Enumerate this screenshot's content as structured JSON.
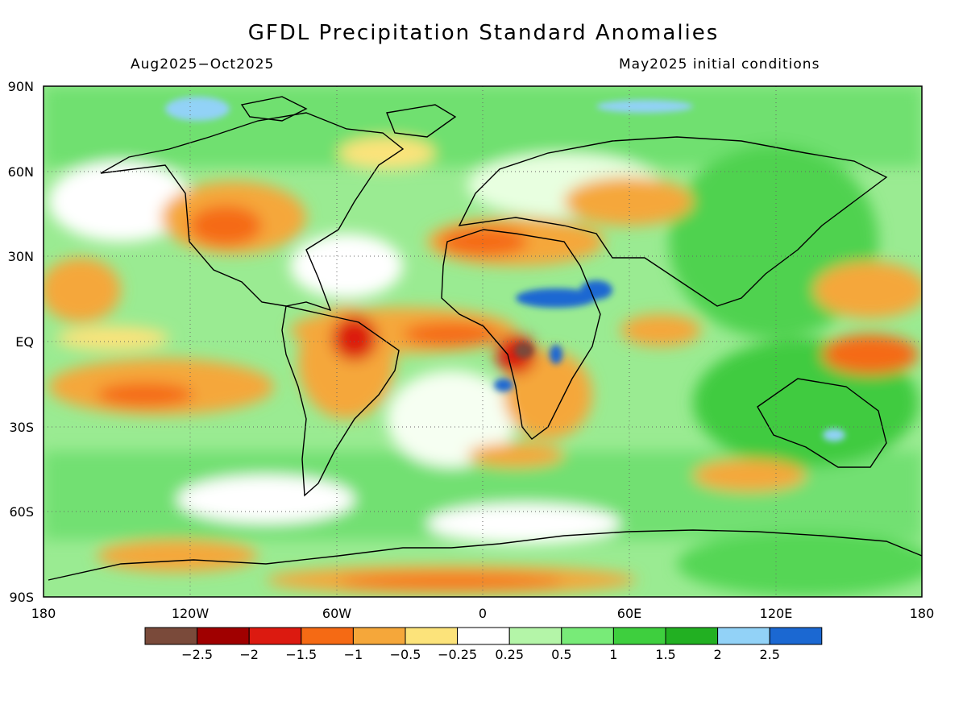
{
  "title": "GFDL Precipitation Standard Anomalies",
  "period": "Aug2025−Oct2025",
  "init": "May2025 initial conditions",
  "lat_labels": [
    "90N",
    "60N",
    "30N",
    "EQ",
    "30S",
    "60S",
    "90S"
  ],
  "lon_labels": [
    "180",
    "120W",
    "60W",
    "0",
    "60E",
    "120E",
    "180"
  ],
  "colorbar": {
    "colors": [
      "#7a4a3a",
      "#a00000",
      "#dc1a10",
      "#f56a14",
      "#f5a73a",
      "#fce37a",
      "#ffffff",
      "#b4f5a8",
      "#78eb78",
      "#3ecf3e",
      "#22b022",
      "#92d2f7",
      "#1b68d2"
    ],
    "labels": [
      "−2.5",
      "−2",
      "−1.5",
      "−1",
      "−0.5",
      "−0.25",
      "0.25",
      "0.5",
      "1",
      "1.5",
      "2",
      "2.5"
    ]
  }
}
